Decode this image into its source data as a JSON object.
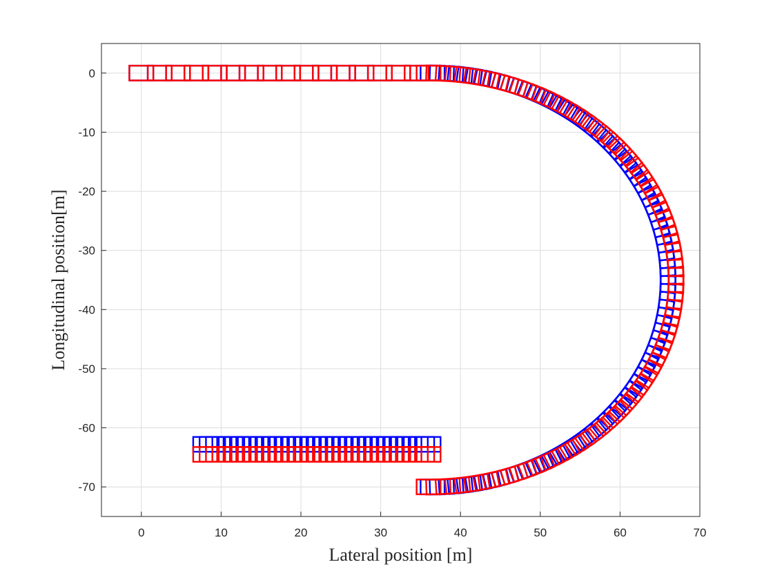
{
  "chart_data": {
    "type": "scatter",
    "title": "",
    "xlabel": "Lateral position [m]",
    "ylabel": "Longitudinal position[m]",
    "xlim": [
      -5,
      70
    ],
    "ylim": [
      -75,
      5
    ],
    "xticks": [
      0,
      10,
      20,
      30,
      40,
      50,
      60,
      70
    ],
    "yticks": [
      0,
      -10,
      -20,
      -30,
      -40,
      -50,
      -60,
      -70
    ],
    "grid": true,
    "legend": "none",
    "marker": "rectangle",
    "marker_size_m": {
      "width": 3.0,
      "height": 2.5
    },
    "series": [
      {
        "color": "#0000ff",
        "path": {
          "straight_start": {
            "x": [
              0,
              36
            ],
            "y": 0,
            "step": 2.3
          },
          "arc": {
            "center": [
              36.5,
              -35
            ],
            "radius_x": 29.5,
            "radius_y": 35,
            "from_deg": 90,
            "to_deg": -90,
            "count": 80
          },
          "straight_end": {
            "x": [
              36,
              8
            ],
            "y": -62.8,
            "step": 0.8
          }
        }
      },
      {
        "color": "#ff0000",
        "path": {
          "straight_start": {
            "x": [
              0,
              36
            ],
            "y": 0,
            "step": 2.3
          },
          "arc": {
            "center": [
              36,
              -35
            ],
            "radius_x": 31,
            "radius_y": 35,
            "from_deg": 90,
            "to_deg": -90,
            "count": 80
          },
          "straight_end": {
            "x": [
              36,
              8
            ],
            "y": -64.5,
            "step": 0.8
          }
        }
      }
    ]
  }
}
